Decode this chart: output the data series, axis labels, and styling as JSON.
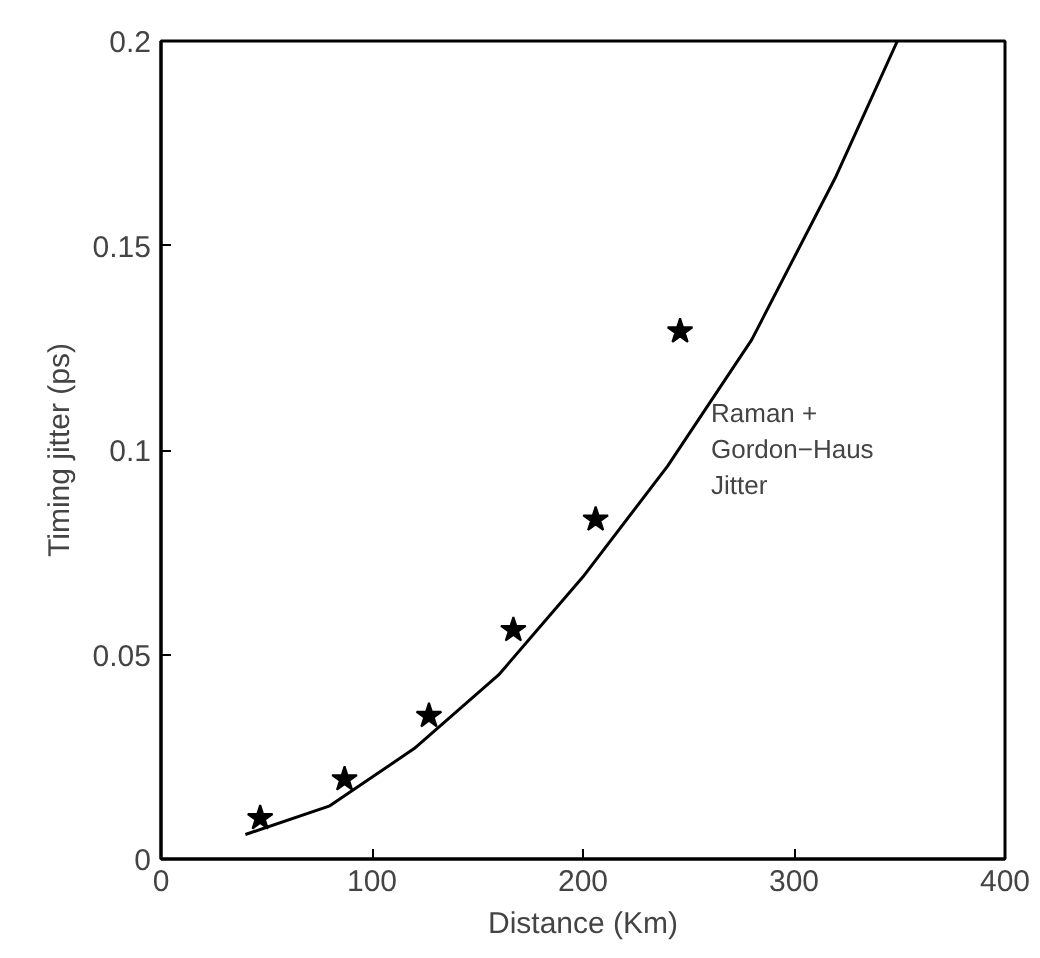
{
  "chart_data": {
    "type": "scatter",
    "xlabel": "Distance (Km)",
    "ylabel": "Timing jitter (ps)",
    "xlim": [
      0,
      400
    ],
    "ylim": [
      0,
      0.2
    ],
    "xticks": [
      0,
      100,
      200,
      300,
      400
    ],
    "yticks": [
      0,
      0.05,
      0.1,
      0.15,
      0.2
    ],
    "grid": false,
    "series": [
      {
        "type": "line",
        "color": "#000000",
        "marker": "none",
        "line_style": "solid",
        "x": [
          40,
          80,
          120,
          160,
          200,
          240,
          280,
          320,
          349
        ],
        "values": [
          0.006,
          0.013,
          0.027,
          0.045,
          0.069,
          0.096,
          0.127,
          0.167,
          0.2
        ]
      },
      {
        "color": "#000000",
        "marker": "star",
        "x": [
          47,
          87,
          127,
          167,
          206,
          246
        ],
        "values": [
          0.01,
          0.0195,
          0.035,
          0.056,
          0.083,
          0.129
        ]
      }
    ],
    "annotations": [
      "Raman +\nGordon−Haus\nJitter"
    ]
  }
}
